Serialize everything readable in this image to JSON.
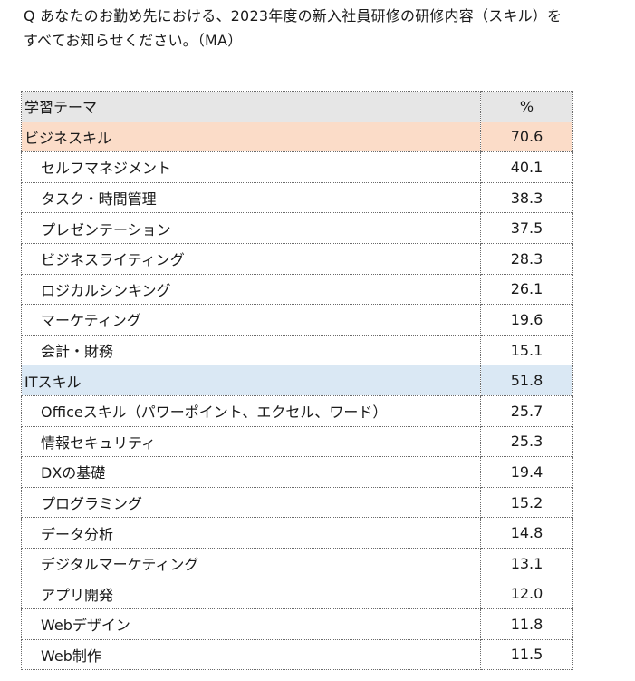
{
  "question": {
    "line1": "Q あなたのお勤め先における、2023年度の新入社員研修の研修内容（スキル）を",
    "line2": "すべてお知らせください。（MA）"
  },
  "table": {
    "headers": {
      "theme": "学習テーマ",
      "percent": "%"
    },
    "rows": [
      {
        "label": "ビジネスキル",
        "value": "70.6",
        "category": "business"
      },
      {
        "label": "セルフマネジメント",
        "value": "40.1"
      },
      {
        "label": "タスク・時間管理",
        "value": "38.3"
      },
      {
        "label": "プレゼンテーション",
        "value": "37.5"
      },
      {
        "label": "ビジネスライティング",
        "value": "28.3"
      },
      {
        "label": "ロジカルシンキング",
        "value": "26.1"
      },
      {
        "label": "マーケティング",
        "value": "19.6"
      },
      {
        "label": "会計・財務",
        "value": "15.1"
      },
      {
        "label": "ITスキル",
        "value": "51.8",
        "category": "it"
      },
      {
        "label": "Officeスキル（パワーポイント、エクセル、ワード）",
        "value": "25.7"
      },
      {
        "label": "情報セキュリティ",
        "value": "25.3"
      },
      {
        "label": "DXの基礎",
        "value": "19.4"
      },
      {
        "label": "プログラミング",
        "value": "15.2"
      },
      {
        "label": "データ分析",
        "value": "14.8"
      },
      {
        "label": "デジタルマーケティング",
        "value": "13.1"
      },
      {
        "label": "アプリ開発",
        "value": "12.0"
      },
      {
        "label": "Webデザイン",
        "value": "11.8"
      },
      {
        "label": "Web制作",
        "value": "11.5"
      }
    ]
  },
  "colors": {
    "business_category_bg": "#fbdcc8",
    "it_category_bg": "#dae8f4",
    "header_bg": "#e6e6e6"
  }
}
